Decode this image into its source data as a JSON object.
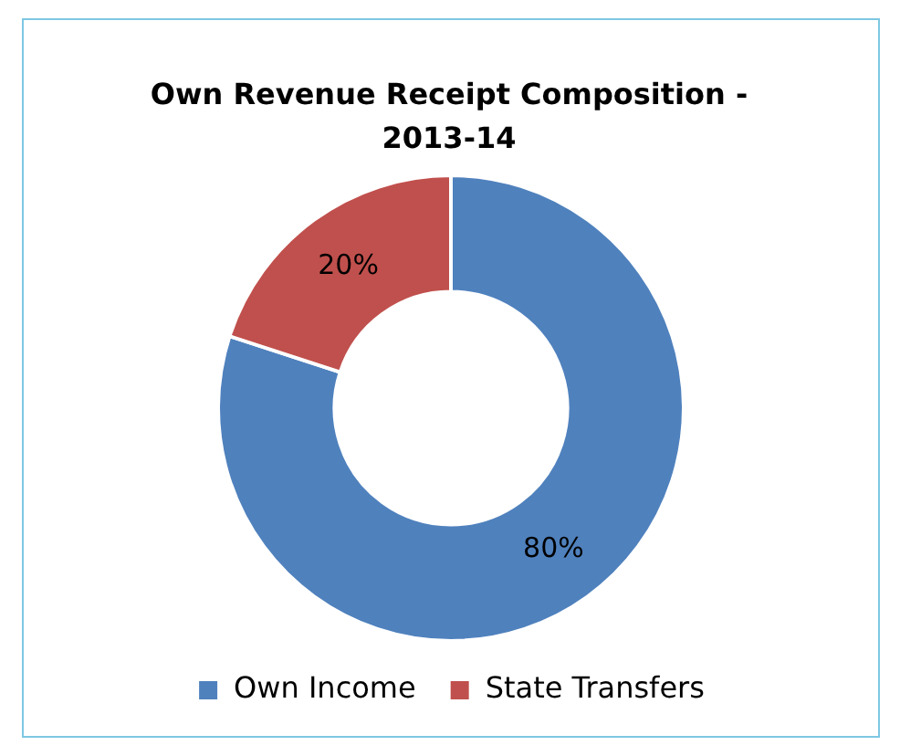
{
  "chart_data": {
    "type": "donut",
    "title": "Own Revenue Receipt Composition - 2013-14",
    "categories": [
      "Own Income",
      "State Transfers"
    ],
    "values": [
      80,
      20
    ],
    "colors": [
      "#4f81bd",
      "#c0504d"
    ],
    "value_labels": [
      "80%",
      "20%"
    ],
    "legend": "bottom"
  }
}
